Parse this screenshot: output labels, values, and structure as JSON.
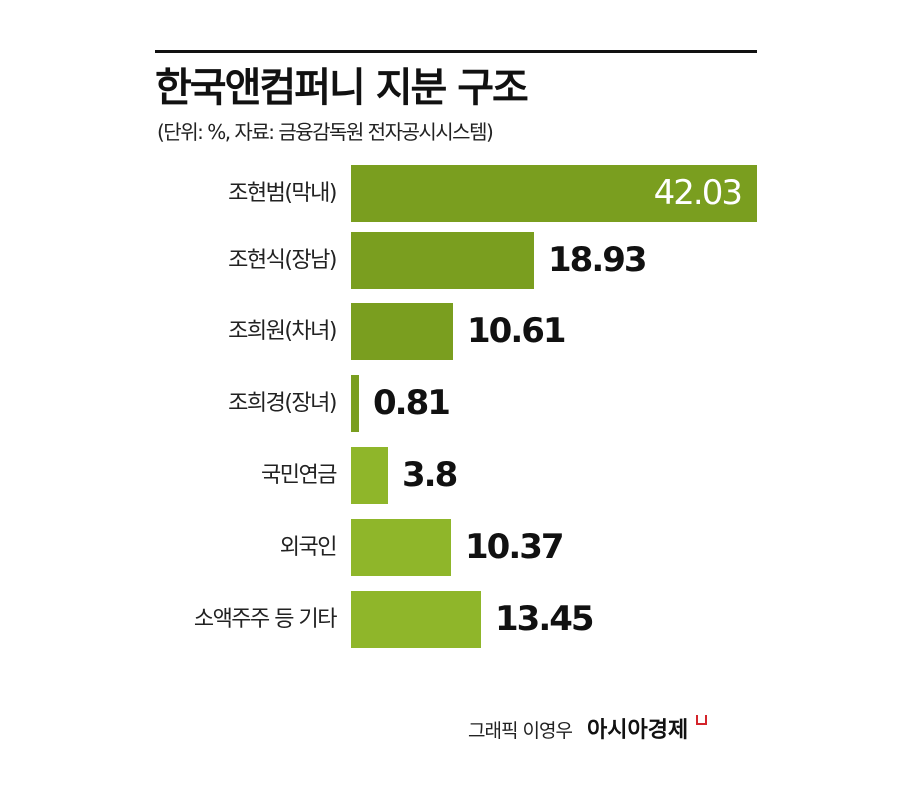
{
  "header": {
    "title": "한국앤컴퍼니 지분 구조",
    "subtitle": "(단위: %, 자료: 금융감독원 전자공시시스템)"
  },
  "colors": {
    "family_bar": "#7a9e1f",
    "other_bar": "#8fb62a",
    "rule": "#111111",
    "brand_mark": "#d4242b"
  },
  "rows": [
    {
      "label": "조현범(막내)",
      "value": "42.03",
      "group": "family"
    },
    {
      "label": "조현식(장남)",
      "value": "18.93",
      "group": "family"
    },
    {
      "label": "조희원(차녀)",
      "value": "10.61",
      "group": "family"
    },
    {
      "label": "조희경(장녀)",
      "value": "0.81",
      "group": "family"
    },
    {
      "label": "국민연금",
      "value": "3.8",
      "group": "other"
    },
    {
      "label": "외국인",
      "value": "10.37",
      "group": "other"
    },
    {
      "label": "소액주주 등 기타",
      "value": "13.45",
      "group": "other"
    }
  ],
  "footer": {
    "credit": "그래픽 이영우",
    "brand": "아시아경제"
  },
  "chart_data": {
    "type": "bar",
    "orientation": "horizontal",
    "title": "한국앤컴퍼니 지분 구조",
    "subtitle": "(단위: %, 자료: 금융감독원 전자공시시스템)",
    "categories": [
      "조현범(막내)",
      "조현식(장남)",
      "조희원(차녀)",
      "조희경(장녀)",
      "국민연금",
      "외국인",
      "소액주주 등 기타"
    ],
    "values": [
      42.03,
      18.93,
      10.61,
      0.81,
      3.8,
      10.37,
      13.45
    ],
    "unit": "%",
    "xlabel": "",
    "ylabel": "",
    "grid": false,
    "legend": null,
    "data_labels": true,
    "bar_colors": [
      "#7a9e1f",
      "#7a9e1f",
      "#7a9e1f",
      "#7a9e1f",
      "#8fb62a",
      "#8fb62a",
      "#8fb62a"
    ]
  }
}
